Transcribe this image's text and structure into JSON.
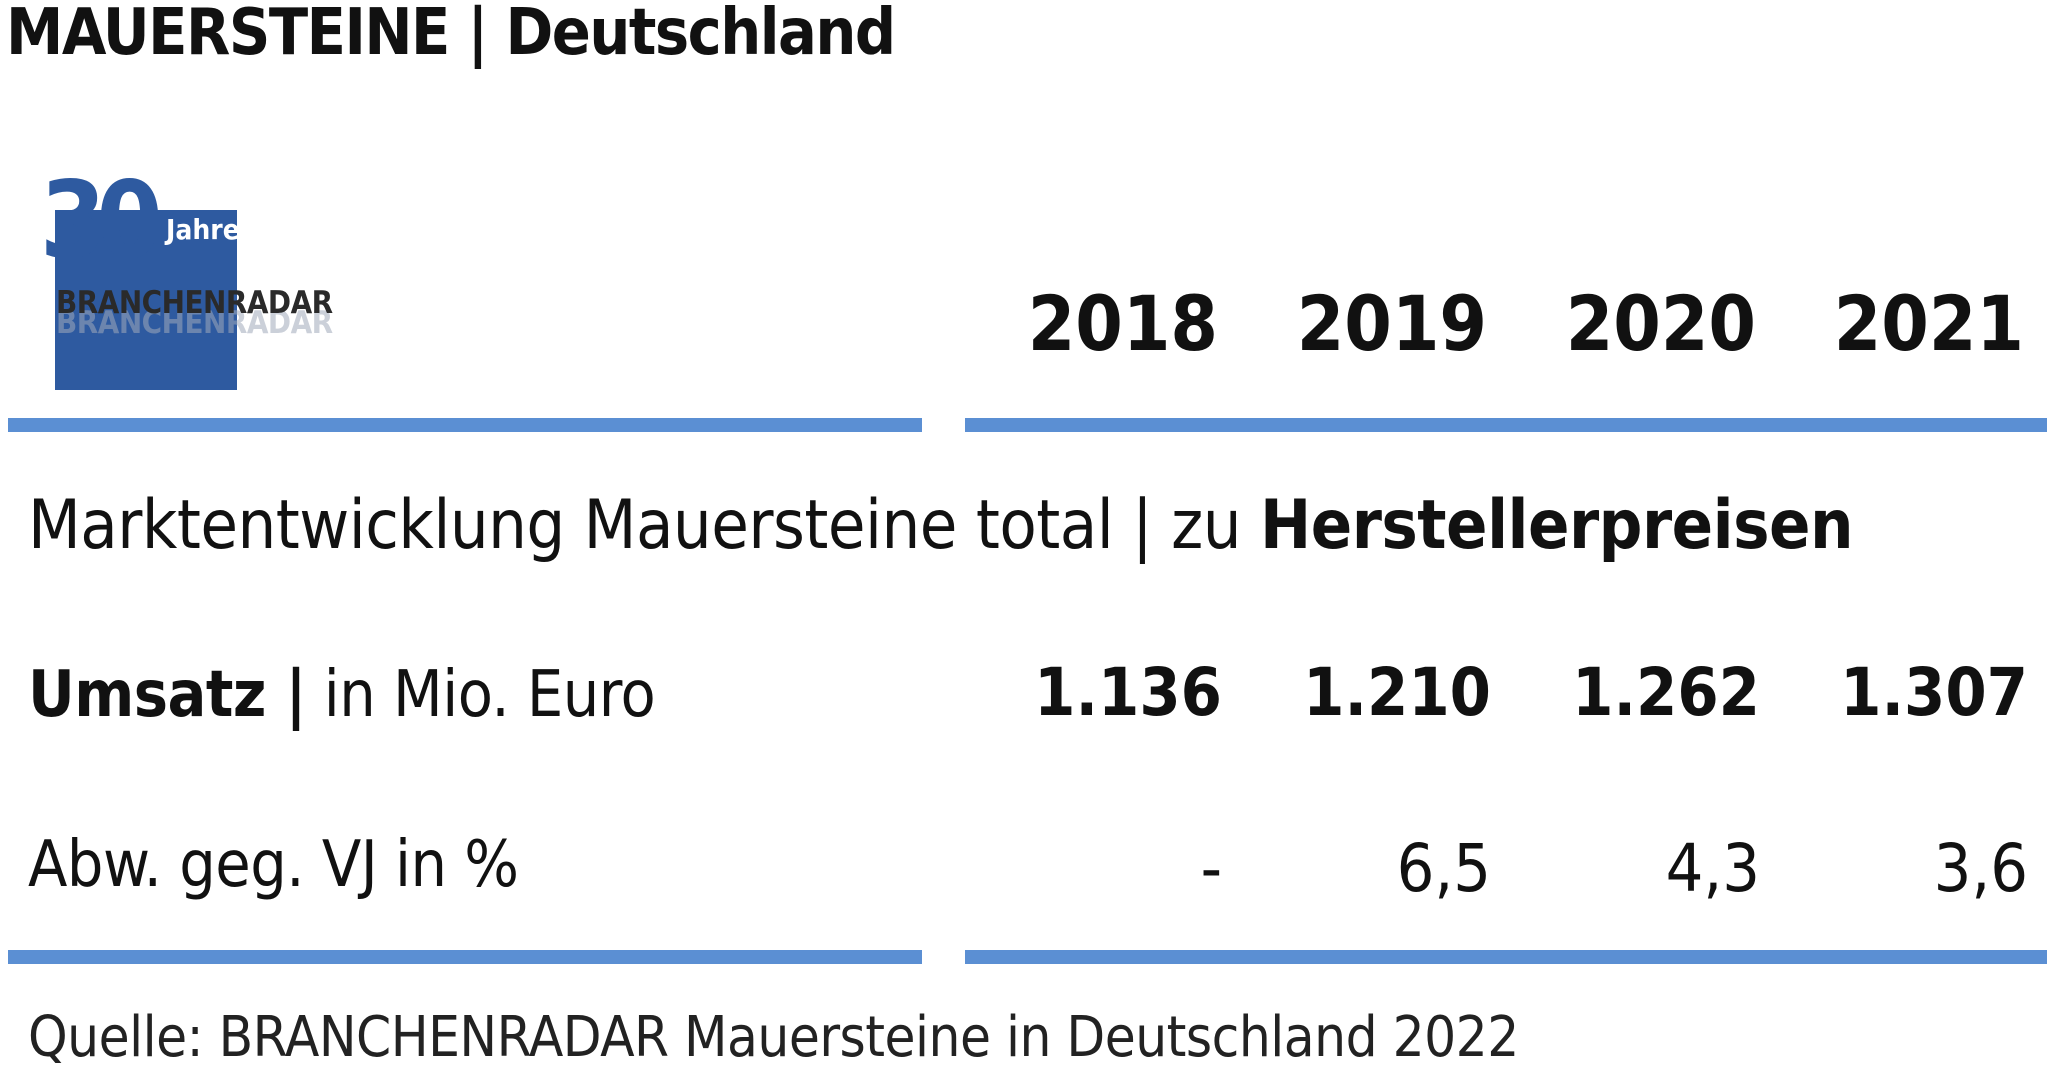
{
  "title": "MAUERSTEINE | Deutschland",
  "logo": {
    "number": "30",
    "jahre": "Jahre",
    "brand": "BRANCHENRADAR",
    "colors": {
      "box": "#2e5aa0"
    }
  },
  "subtitle": {
    "prefix": "Marktentwicklung Mauersteine total | zu ",
    "emphasis": "Herstellerpreisen"
  },
  "chart_data": {
    "type": "table",
    "columns": [
      "2018",
      "2019",
      "2020",
      "2021"
    ],
    "rows": [
      {
        "label_bold": "Umsatz |",
        "label_rest": " in Mio. Euro",
        "values": [
          "1.136",
          "1.210",
          "1.262",
          "1.307"
        ]
      },
      {
        "label_bold": "",
        "label_rest": "Abw. geg. VJ in %",
        "values": [
          "-",
          "6,5",
          "4,3",
          "3,6"
        ]
      }
    ]
  },
  "source": "Quelle: BRANCHENRADAR Mauersteine in Deutschland 2022",
  "colors": {
    "rule": "#5b8fd3",
    "text": "#111111"
  }
}
